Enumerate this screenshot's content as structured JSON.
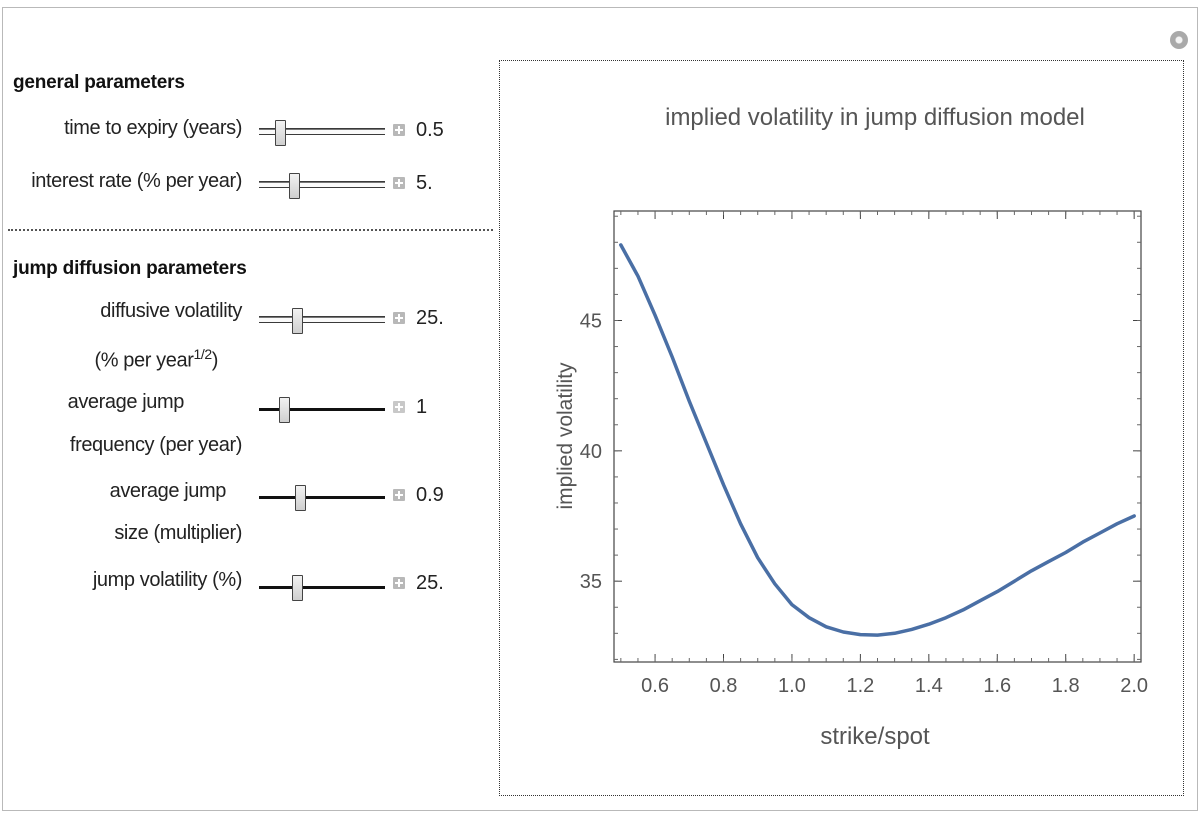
{
  "general": {
    "title": "general parameters",
    "controls": [
      {
        "label": "time to expiry (years)",
        "value": "0.5",
        "slider_fraction": 0.14
      },
      {
        "label": "interest rate (% per year)",
        "value": "5.",
        "slider_fraction": 0.26
      }
    ]
  },
  "jump": {
    "title": "jump diffusion parameters",
    "controls": [
      {
        "label_lines": [
          "diffusive volatility",
          "(% per year",
          "1/2",
          ")"
        ],
        "value": "25.",
        "slider_fraction": 0.29
      },
      {
        "label_lines": [
          "average jump",
          "frequency (per year)"
        ],
        "value": "1",
        "slider_fraction": 0.17
      },
      {
        "label_lines": [
          "average jump",
          "size (multiplier)"
        ],
        "value": "0.9",
        "slider_fraction": 0.31
      },
      {
        "label": "jump volatility (%)",
        "value": "25.",
        "slider_fraction": 0.29
      }
    ]
  },
  "chart_data": {
    "type": "line",
    "title": "implied volatility in jump diffusion model",
    "xlabel": "strike/spot",
    "ylabel": "implied volatility",
    "xlim": [
      0.48,
      2.02
    ],
    "ylim": [
      31.9,
      49.2
    ],
    "xticks": [
      "0.6",
      "0.8",
      "1.0",
      "1.2",
      "1.4",
      "1.6",
      "1.8",
      "2.0"
    ],
    "yticks": [
      "35",
      "40",
      "45"
    ],
    "line_color": "#4a6fa5",
    "series": [
      {
        "x": [
          0.5,
          0.55,
          0.6,
          0.65,
          0.7,
          0.75,
          0.8,
          0.85,
          0.9,
          0.95,
          1.0,
          1.05,
          1.1,
          1.15,
          1.2,
          1.25,
          1.3,
          1.35,
          1.4,
          1.45,
          1.5,
          1.55,
          1.6,
          1.65,
          1.7,
          1.75,
          1.8,
          1.85,
          1.9,
          1.95,
          2.0
        ],
        "y": [
          47.9,
          46.7,
          45.2,
          43.6,
          41.9,
          40.3,
          38.7,
          37.2,
          35.9,
          34.9,
          34.1,
          33.6,
          33.25,
          33.05,
          32.95,
          32.93,
          33.0,
          33.15,
          33.35,
          33.6,
          33.9,
          34.25,
          34.6,
          35.0,
          35.4,
          35.75,
          36.1,
          36.5,
          36.85,
          37.2,
          37.5
        ]
      }
    ]
  }
}
